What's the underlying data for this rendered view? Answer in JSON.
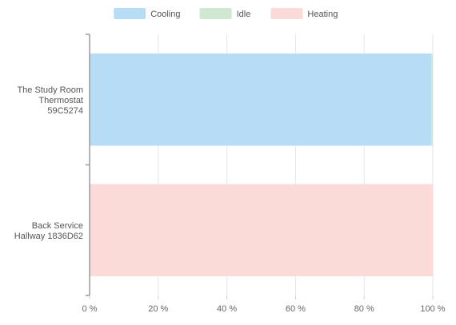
{
  "chart_data": {
    "type": "bar",
    "orientation": "horizontal",
    "stacked": true,
    "categories": [
      [
        "The Study Room",
        "Thermostat",
        "59C5274"
      ],
      [
        "Back Service",
        "Hallway 1836D62"
      ]
    ],
    "series": [
      {
        "name": "Cooling",
        "color": "#b7dcf6",
        "values": [
          99.6,
          0
        ]
      },
      {
        "name": "Idle",
        "color": "#cfe8d2",
        "values": [
          0.4,
          0
        ]
      },
      {
        "name": "Heating",
        "color": "#fadbd8",
        "values": [
          0,
          100
        ]
      }
    ],
    "x_ticks": [
      "0 %",
      "20 %",
      "40 %",
      "60 %",
      "80 %",
      "100 %"
    ],
    "xlim": [
      0,
      100
    ],
    "grid": true,
    "legend_position": "top-center"
  }
}
